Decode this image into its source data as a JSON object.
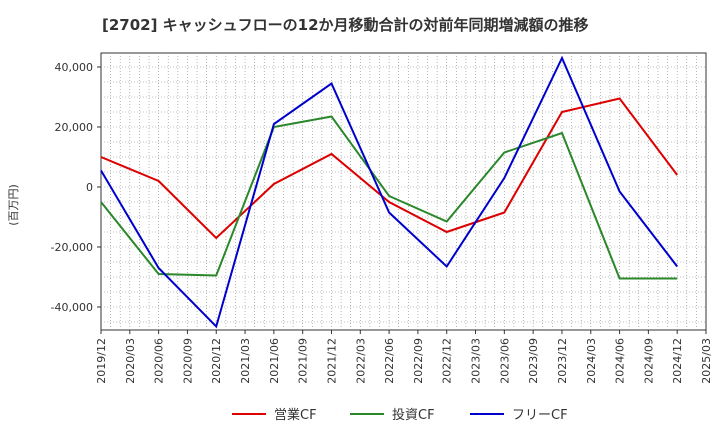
{
  "chart_data": {
    "type": "line",
    "title": "[2702]  キャッシュフローの12か月移動合計の対前年同期増減額の推移",
    "ylabel": "(百万円)",
    "xlabel": "",
    "ylim": [
      -48000,
      45000
    ],
    "yticks": [
      40000,
      20000,
      0,
      -20000,
      -40000
    ],
    "ytick_labels": [
      "40,000",
      "20,000",
      "0",
      "-20,000",
      "-40,000"
    ],
    "categories": [
      "2019/12",
      "2020/03",
      "2020/06",
      "2020/09",
      "2020/12",
      "2021/03",
      "2021/06",
      "2021/09",
      "2021/12",
      "2022/03",
      "2022/06",
      "2022/09",
      "2022/12",
      "2023/03",
      "2023/06",
      "2023/09",
      "2023/12",
      "2024/03",
      "2024/06",
      "2024/09",
      "2024/12",
      "2025/03"
    ],
    "grid": true,
    "legend_position": "bottom",
    "series": [
      {
        "name": "営業CF",
        "color": "#dd0000",
        "points": [
          [
            "2019/12",
            10000
          ],
          [
            "2020/06",
            2000
          ],
          [
            "2020/12",
            -17000
          ],
          [
            "2021/06",
            1000
          ],
          [
            "2021/12",
            11000
          ],
          [
            "2022/06",
            -5000
          ],
          [
            "2022/12",
            -15000
          ],
          [
            "2023/06",
            -8500
          ],
          [
            "2023/12",
            25000
          ],
          [
            "2024/06",
            29500
          ],
          [
            "2024/12",
            4000
          ]
        ]
      },
      {
        "name": "投資CF",
        "color": "#2a882a",
        "points": [
          [
            "2019/12",
            -5000
          ],
          [
            "2020/06",
            -29000
          ],
          [
            "2020/12",
            -29500
          ],
          [
            "2021/06",
            20000
          ],
          [
            "2021/12",
            23500
          ],
          [
            "2022/06",
            -3000
          ],
          [
            "2022/12",
            -11500
          ],
          [
            "2023/06",
            11500
          ],
          [
            "2023/12",
            18000
          ],
          [
            "2024/06",
            -30500
          ],
          [
            "2024/12",
            -30500
          ]
        ]
      },
      {
        "name": "フリーCF",
        "color": "#0000cc",
        "points": [
          [
            "2019/12",
            5500
          ],
          [
            "2020/06",
            -27000
          ],
          [
            "2020/12",
            -46500
          ],
          [
            "2021/06",
            21000
          ],
          [
            "2021/12",
            34500
          ],
          [
            "2022/06",
            -8500
          ],
          [
            "2022/12",
            -26500
          ],
          [
            "2023/06",
            3000
          ],
          [
            "2023/12",
            43000
          ],
          [
            "2024/06",
            -1500
          ],
          [
            "2024/12",
            -26500
          ]
        ]
      }
    ]
  }
}
